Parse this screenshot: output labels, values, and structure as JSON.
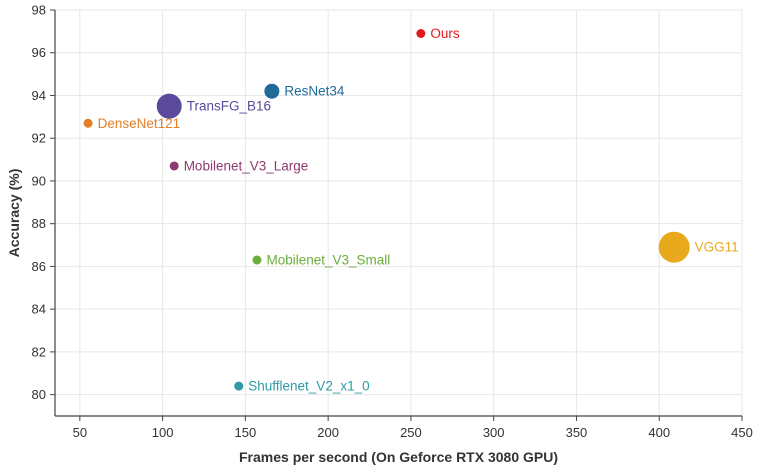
{
  "chart_data": {
    "type": "scatter",
    "title": "",
    "xlabel": "Frames per second (On Geforce RTX 3080 GPU)",
    "ylabel": "Accuracy (%)",
    "xlim": [
      35,
      450
    ],
    "ylim": [
      79,
      98
    ],
    "xticks": [
      50,
      100,
      150,
      200,
      250,
      300,
      350,
      400,
      450
    ],
    "yticks": [
      80,
      82,
      84,
      86,
      88,
      90,
      92,
      94,
      96,
      98
    ],
    "grid": true,
    "legend": "none",
    "points": [
      {
        "label": "Ours",
        "x": 256,
        "y": 96.9,
        "color": "#e31a1c",
        "size": "small"
      },
      {
        "label": "ResNet34",
        "x": 166,
        "y": 94.2,
        "color": "#1f6a99",
        "size": "medium"
      },
      {
        "label": "TransFG_B16",
        "x": 104,
        "y": 93.5,
        "color": "#5b4a9b",
        "size": "large"
      },
      {
        "label": "DenseNet121",
        "x": 55,
        "y": 92.7,
        "color": "#e67e22",
        "size": "small"
      },
      {
        "label": "Mobilenet_V3_Large",
        "x": 107,
        "y": 90.7,
        "color": "#8e3a6e",
        "size": "small"
      },
      {
        "label": "VGG11",
        "x": 409,
        "y": 86.9,
        "color": "#e8a91c",
        "size": "xlarge"
      },
      {
        "label": "Mobilenet_V3_Small",
        "x": 157,
        "y": 86.3,
        "color": "#6aaf3c",
        "size": "small"
      },
      {
        "label": "Shufflenet_V2_x1_0",
        "x": 146,
        "y": 80.4,
        "color": "#2e9aa3",
        "size": "small"
      }
    ]
  }
}
